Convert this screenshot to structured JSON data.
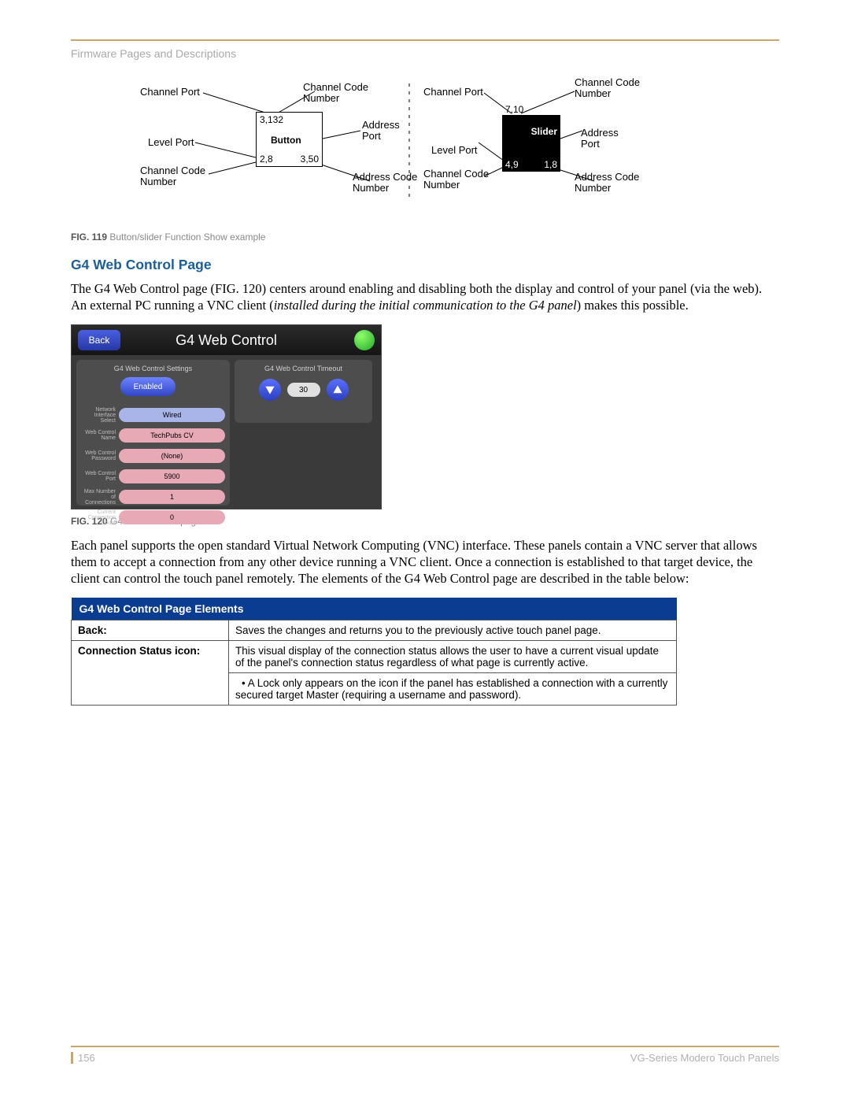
{
  "header": {
    "section": "Firmware Pages and Descriptions"
  },
  "diagram": {
    "left": {
      "channel_port": "Channel Port",
      "channel_code_number_top": "Channel Code\nNumber",
      "address_port": "Address\nPort",
      "level_port": "Level Port",
      "channel_code_number_left": "Channel Code\nNumber",
      "address_code_number": "Address Code\nNumber",
      "box_label": "Button",
      "v_top": "3,132",
      "v_bl": "2,8",
      "v_br": "3,50"
    },
    "right": {
      "channel_port": "Channel Port",
      "channel_code_number_top": "Channel Code\nNumber",
      "address_port": "Address\nPort",
      "level_port": "Level Port",
      "channel_code_number_left": "Channel Code\nNumber",
      "address_code_number": "Address Code\nNumber",
      "box_label": "Slider",
      "v_top": "7,10",
      "v_bl": "4,9",
      "v_br": "1,8"
    }
  },
  "fig119": {
    "num": "FIG. 119",
    "caption": "Button/slider Function Show example"
  },
  "heading": "G4 Web Control Page",
  "para1a": "The G4 Web Control page (FIG. 120) centers around enabling and disabling both the display and control of your panel (via the web). An external PC running a VNC client (",
  "para1b": "installed during the initial communication to the G4 panel",
  "para1c": ") makes this possible.",
  "shot": {
    "title": "G4 Web Control",
    "back": "Back",
    "left_hdr": "G4 Web Control Settings",
    "right_hdr": "G4 Web Control Timeout",
    "enabled": "Enabled",
    "timeout_value": "30",
    "rows": [
      {
        "label": "Network Interface Select",
        "value": "Wired",
        "style": "pill-blue"
      },
      {
        "label": "Web Control Name",
        "value": "TechPubs CV",
        "style": "pill-pink"
      },
      {
        "label": "Web Control Password",
        "value": "(None)",
        "style": "pill-pink"
      },
      {
        "label": "Web Control Port",
        "value": "5900",
        "style": "pill-pink"
      },
      {
        "label": "Max Number of Connections",
        "value": "1",
        "style": "pill-pink"
      },
      {
        "label": "Current Connection Count",
        "value": "0",
        "style": "pill-pink"
      }
    ]
  },
  "fig120": {
    "num": "FIG. 120",
    "caption": "G4 Web Control page"
  },
  "para2": "Each panel supports the open standard Virtual Network Computing (VNC) interface. These panels contain a VNC server that allows them to accept a connection from any other device running a VNC client. Once a connection is established to that target device, the client can control the touch panel remotely. The elements of the G4 Web Control page are described in the table below:",
  "table": {
    "title": "G4 Web Control Page Elements",
    "rows": [
      {
        "key": "Back:",
        "val": "Saves the changes and returns you to the previously active touch panel page."
      },
      {
        "key": "Connection Status icon:",
        "val": "This visual display of the connection status allows the user to have a current visual update of the panel's connection status regardless of what page is currently active.",
        "bullet_a": "A Lock only appears on the icon if the panel has established a connection with a currently secured target Master (",
        "bullet_b": "requiring a username and password",
        "bullet_c": ")."
      }
    ]
  },
  "footer": {
    "page": "156",
    "doc": "VG-Series Modero Touch Panels"
  }
}
